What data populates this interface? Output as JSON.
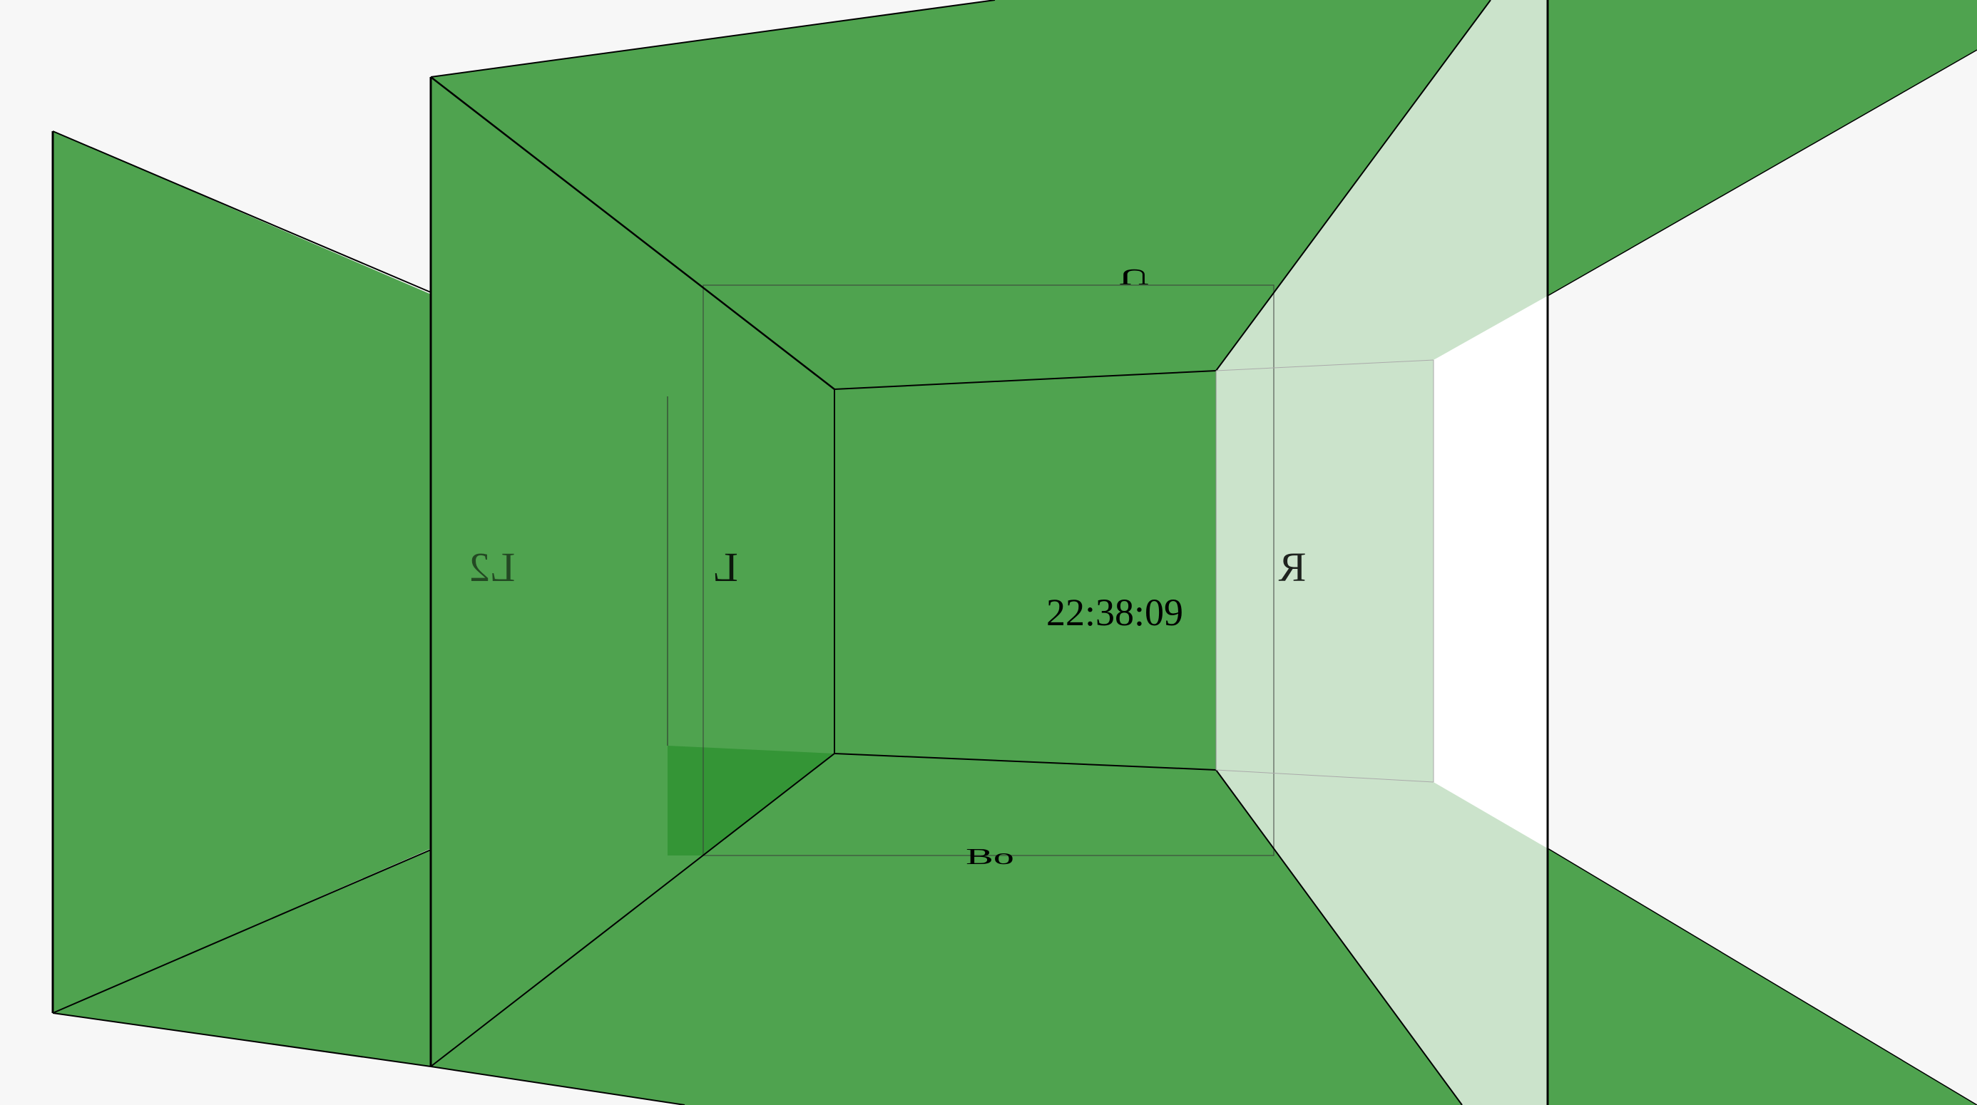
{
  "scene": {
    "colors": {
      "background": "#f7f7f7",
      "face_green": "#4fa34f",
      "face_dark_green": "#1f8a22",
      "face_pale_green": "#cbe3cb",
      "void_white": "#ffffff",
      "edge": "#000000"
    },
    "labels": {
      "clock": "22:38:09",
      "left_outer": "L2",
      "left_inner": "L",
      "right_inner": "R",
      "top": "U",
      "bottom": "Bo"
    }
  }
}
